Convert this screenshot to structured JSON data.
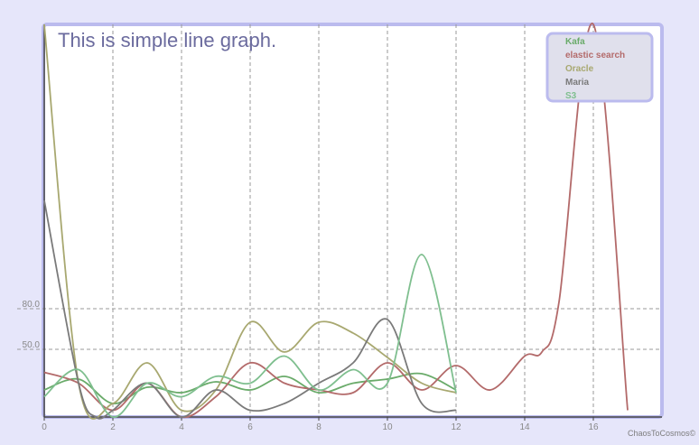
{
  "chart_data": {
    "type": "line",
    "title": "This is simple line graph.",
    "xlabel": "",
    "ylabel": "",
    "xlim": [
      0,
      18
    ],
    "ylim": [
      0,
      290
    ],
    "x_ticks": [
      0,
      2,
      4,
      6,
      8,
      10,
      12,
      14,
      16
    ],
    "y_ticks": [
      50,
      80
    ],
    "y_tick_labels": [
      "50.0",
      "80.0"
    ],
    "grid": {
      "vertical": true,
      "horizontal_at_ticks": true
    },
    "legend_position": "top-right",
    "series": [
      {
        "name": "Kafa",
        "color": "#6aab6a",
        "x": [
          0,
          1,
          2,
          3,
          4,
          5,
          6,
          7,
          8,
          9,
          10,
          11,
          12
        ],
        "values": [
          20,
          28,
          10,
          22,
          18,
          26,
          20,
          30,
          18,
          25,
          28,
          32,
          20
        ]
      },
      {
        "name": "elastic search",
        "color": "#b36a6a",
        "x": [
          0,
          1,
          2,
          3,
          4,
          5,
          6,
          7,
          8,
          9,
          10,
          11,
          12,
          13,
          14,
          14.5,
          15,
          16,
          17
        ],
        "values": [
          33,
          25,
          5,
          25,
          0,
          15,
          40,
          25,
          20,
          18,
          40,
          20,
          38,
          20,
          45,
          48,
          85,
          290,
          5
        ]
      },
      {
        "name": "Oracle",
        "color": "#a8a870",
        "x": [
          0,
          1,
          2,
          3,
          4,
          5,
          6,
          7,
          8,
          9,
          10,
          11,
          12
        ],
        "values": [
          290,
          25,
          10,
          40,
          5,
          20,
          70,
          48,
          70,
          62,
          44,
          25,
          18
        ]
      },
      {
        "name": "Maria",
        "color": "#7a7a7a",
        "x": [
          0,
          1,
          1.5,
          2,
          3,
          4,
          5,
          6,
          7,
          8,
          9,
          10,
          11,
          12
        ],
        "values": [
          160,
          25,
          0,
          5,
          25,
          0,
          20,
          5,
          10,
          25,
          40,
          72,
          10,
          5
        ]
      },
      {
        "name": "S3",
        "color": "#7fbf8f",
        "x": [
          0,
          1,
          2,
          3,
          4,
          5,
          6,
          7,
          8,
          9,
          10,
          11,
          12
        ],
        "values": [
          15,
          35,
          0,
          25,
          15,
          30,
          25,
          45,
          20,
          35,
          25,
          120,
          18
        ]
      }
    ]
  },
  "watermark": "ChaosToCosmos©"
}
